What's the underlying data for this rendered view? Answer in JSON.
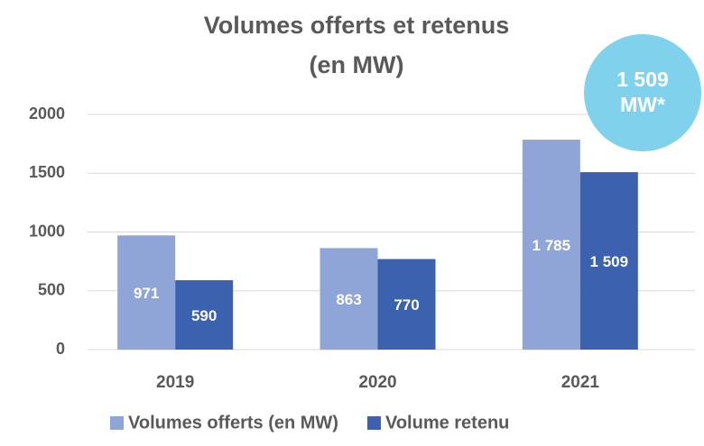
{
  "chart_data": {
    "type": "bar",
    "title": [
      "Volumes offerts et retenus",
      "(en MW)"
    ],
    "categories": [
      "2019",
      "2020",
      "2021"
    ],
    "series": [
      {
        "name": "Volumes offerts (en MW)",
        "color": "#8fa4d7",
        "values": [
          971,
          863,
          1785
        ],
        "value_labels": [
          "971",
          "863",
          "1 785"
        ]
      },
      {
        "name": "Volume retenu",
        "color": "#3b61af",
        "values": [
          590,
          770,
          1509
        ],
        "value_labels": [
          "590",
          "770",
          "1 509"
        ]
      }
    ],
    "annotation": [
      "1 509",
      "MW*"
    ],
    "annotation_color": "#7fd1ec",
    "ylim": [
      0,
      2000
    ],
    "yticks": [
      0,
      500,
      1000,
      1500,
      2000
    ],
    "grid": true
  }
}
